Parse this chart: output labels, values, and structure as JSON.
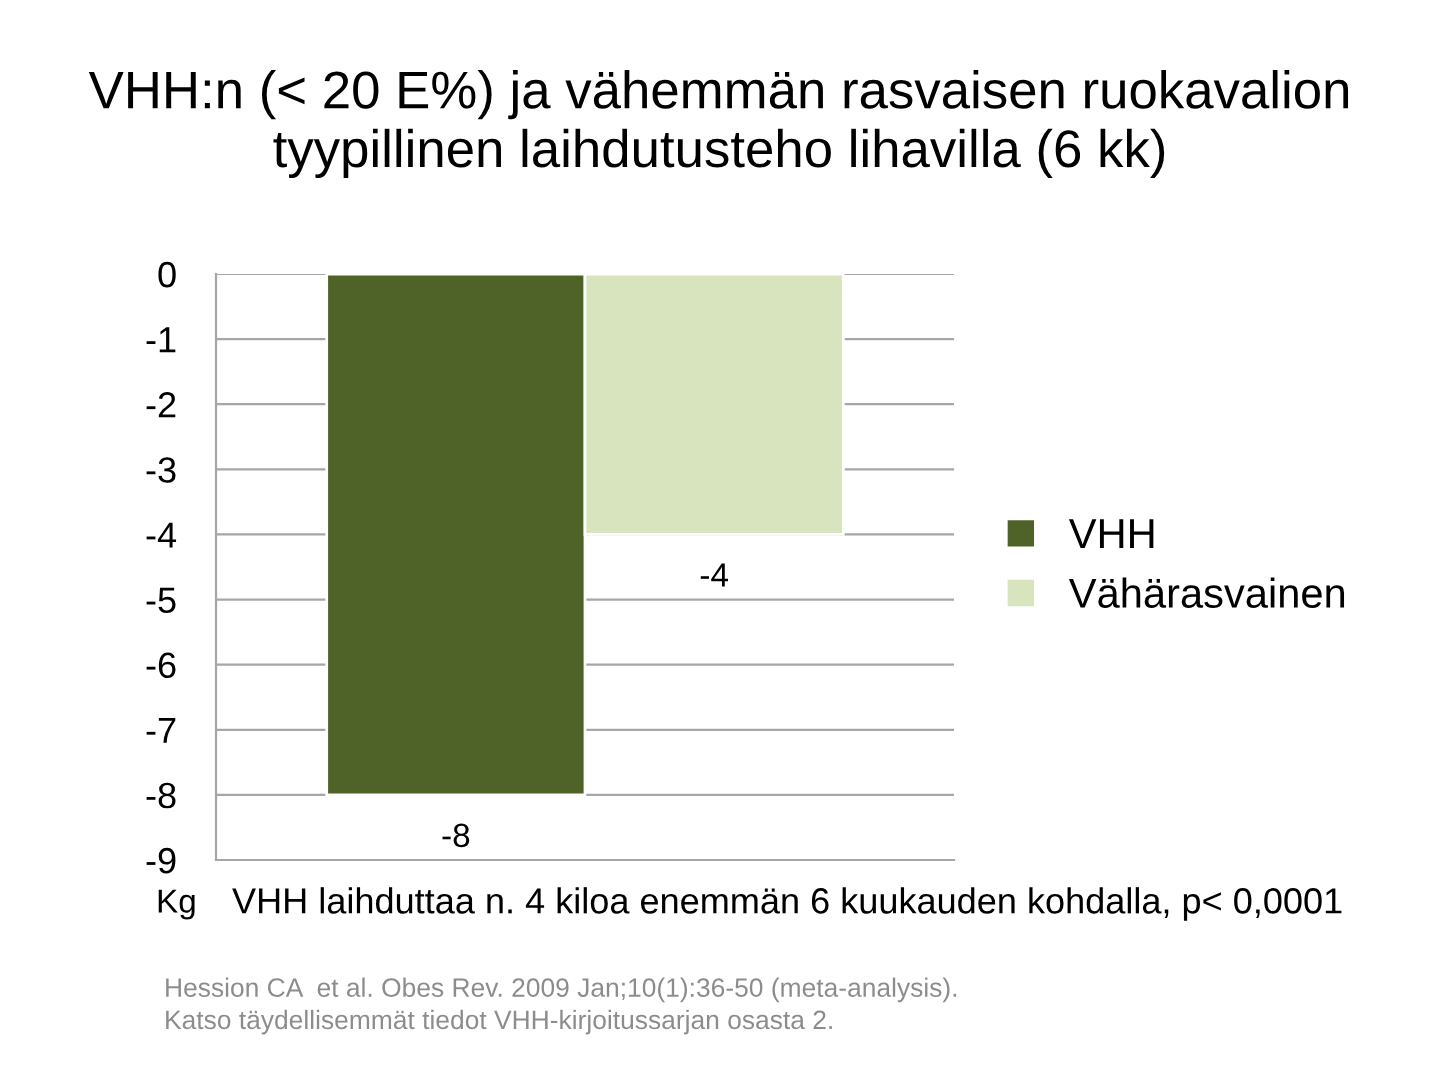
{
  "chart_data": {
    "type": "bar",
    "title": "VHH:n (< 20 E%) ja vähemmän rasvaisen ruokavalion\ntyypillinen laihdutusteho lihavilla (6 kk)",
    "ylabel": "Kg",
    "categories": [
      null
    ],
    "series": [
      {
        "name": "VHH",
        "color": "#4f6228",
        "values": [
          -8
        ]
      },
      {
        "name": "Vähärasvainen",
        "color": "#d7e4bd",
        "values": [
          -4
        ]
      }
    ],
    "ylim": [
      -9,
      0
    ],
    "yticks": [
      0,
      -1,
      -2,
      -3,
      -4,
      -5,
      -6,
      -7,
      -8,
      -9
    ],
    "grid": "y",
    "legend": "right",
    "data_labels": true,
    "annotations": [
      "VHH laihduttaa n. 4 kiloa enemmän 6 kuukauden kohdalla, p< 0,0001",
      "Hession CA  et al. Obes Rev. 2009 Jan;10(1):36-50 (meta-analysis).\nKatso täydellisemmät tiedot VHH-kirjoitussarjan osasta 2."
    ]
  }
}
